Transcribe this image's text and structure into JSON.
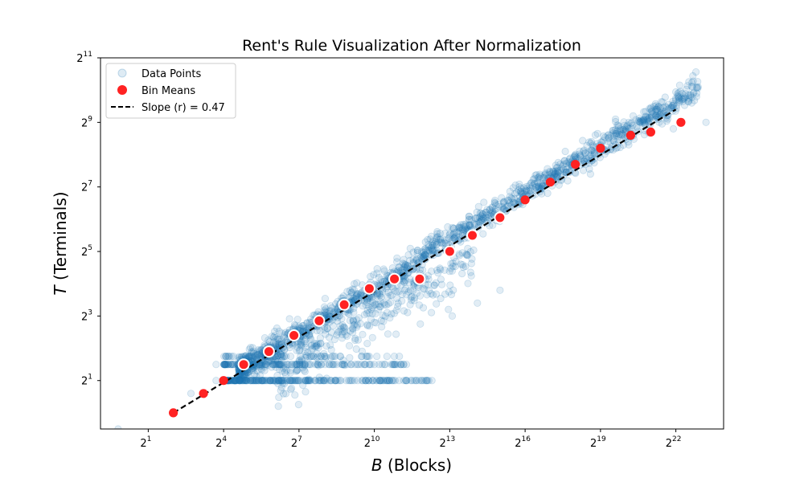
{
  "chart_data": {
    "type": "scatter",
    "title": "Rent's Rule Visualization After Normalization",
    "xlabel_var": "B",
    "xlabel_rest": " (Blocks)",
    "ylabel_var": "T",
    "ylabel_rest": " (Terminals)",
    "xscale": "log2",
    "yscale": "log2",
    "xlim_log2": [
      -0.9,
      23.9
    ],
    "ylim_log2": [
      -0.5,
      11.0
    ],
    "x_tick_exponents": [
      "1",
      "4",
      "7",
      "10",
      "13",
      "16",
      "19",
      "22"
    ],
    "y_tick_exponents": [
      "1",
      "3",
      "5",
      "7",
      "9",
      "11"
    ],
    "tick_base": "2",
    "grid": false,
    "legend": {
      "placement": "top-left",
      "entries": [
        {
          "key": "points",
          "label": "Data Points"
        },
        {
          "key": "means",
          "label": "Bin Means"
        },
        {
          "key": "fit",
          "label": "Slope (r) = 0.47"
        }
      ]
    },
    "series": [
      {
        "name": "Bin Means",
        "color": "#ff2222",
        "points_log2": [
          [
            2.0,
            0.0
          ],
          [
            3.2,
            0.6
          ],
          [
            4.0,
            1.0
          ],
          [
            4.8,
            1.5
          ],
          [
            5.8,
            1.9
          ],
          [
            6.8,
            2.4
          ],
          [
            7.8,
            2.85
          ],
          [
            8.8,
            3.35
          ],
          [
            9.8,
            3.85
          ],
          [
            10.8,
            4.15
          ],
          [
            11.8,
            4.15
          ],
          [
            13.0,
            5.0
          ],
          [
            13.9,
            5.5
          ],
          [
            15.0,
            6.05
          ],
          [
            16.0,
            6.6
          ],
          [
            17.0,
            7.15
          ],
          [
            18.0,
            7.7
          ],
          [
            19.0,
            8.2
          ],
          [
            20.2,
            8.6
          ],
          [
            21.0,
            8.7
          ],
          [
            22.2,
            9.0
          ]
        ]
      },
      {
        "name": "Slope (r) = 0.47",
        "color": "#000000",
        "line_log2": [
          [
            2.0,
            0.0
          ],
          [
            22.0,
            9.4
          ]
        ]
      }
    ],
    "data_points_color": "#1f77b4"
  }
}
